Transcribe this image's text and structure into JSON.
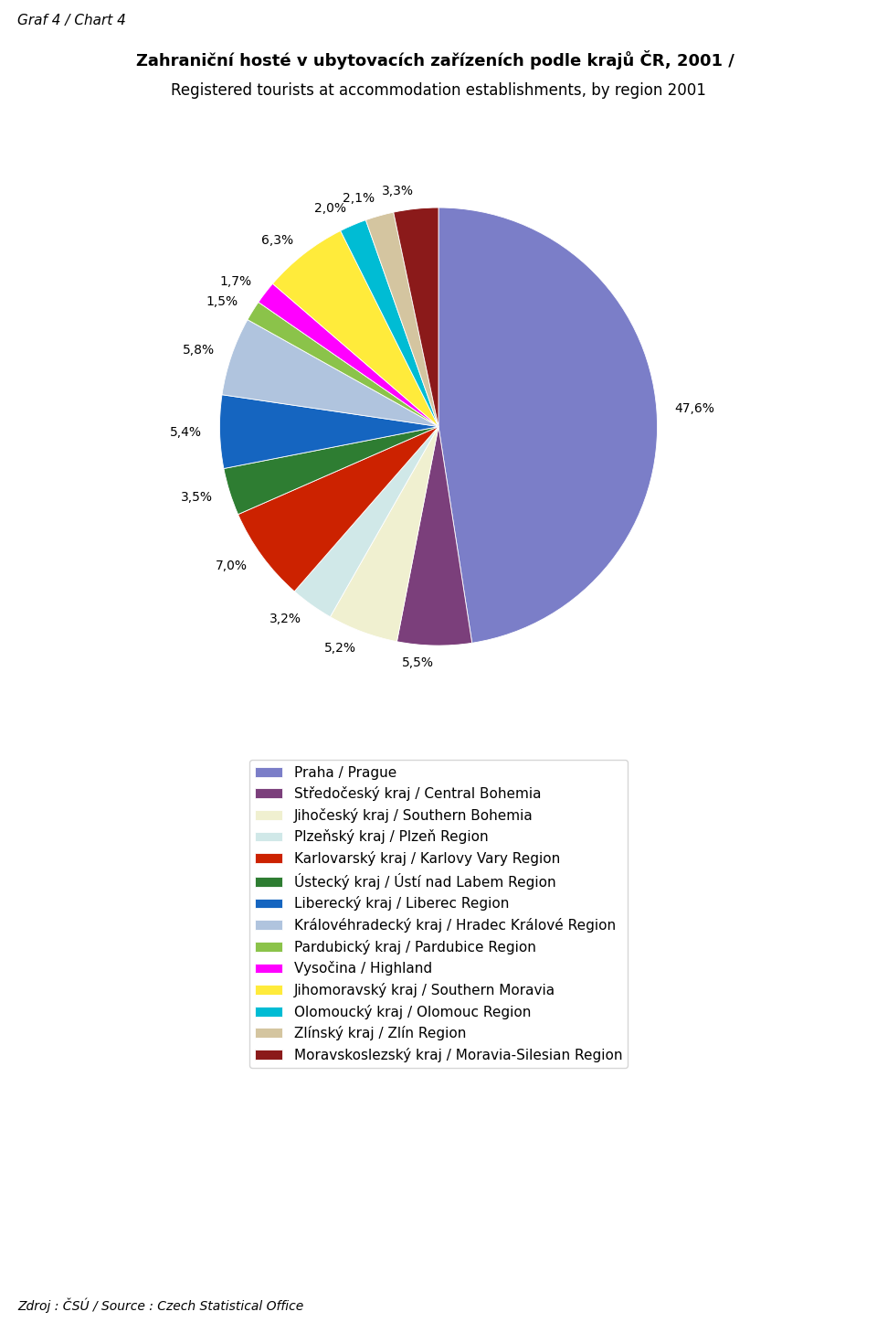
{
  "chart_data": {
    "type": "pie",
    "title": "Zahraniční hosté v ubytovacích zařízeních podle krajů ČR, 2001 / ",
    "subtitle": "Registered tourists at accommodation establishments, by region 2001",
    "annotations": [
      "Graf 4 / Chart 4",
      "Zdroj : ČSÚ / Source : Czech Statistical Office"
    ],
    "categories": [
      "Praha / Prague",
      "Středočeský kraj / Central Bohemia",
      "Jihočeský kraj / Southern Bohemia",
      "Plzeňský kraj / Plzeň Region",
      "Karlovarský kraj / Karlovy Vary Region",
      "Ústecký kraj / Ústí nad Labem Region",
      "Liberecký kraj / Liberec Region",
      "Královéhradecký kraj / Hradec Králové Region",
      "Pardubický kraj / Pardubice Region",
      "Vysočina / Highland",
      "Jihomoravský kraj / Southern Moravia",
      "Olomoucký kraj / Olomouc Region",
      "Zlínský kraj / Zlín Region",
      "Moravskoslezský kraj / Moravia-Silesian Region"
    ],
    "values": [
      47.6,
      5.5,
      5.2,
      3.2,
      7.0,
      3.5,
      5.4,
      5.8,
      1.5,
      1.7,
      6.3,
      2.0,
      2.1,
      3.3
    ],
    "value_labels": [
      "47,6%",
      "5,5%",
      "5,2%",
      "3,2%",
      "7,0%",
      "3,5%",
      "5,4%",
      "5,8%",
      "1,5%",
      "1,7%",
      "6,3%",
      "2,0%",
      "2,1%",
      "3,3%"
    ],
    "colors": [
      "#7B7EC8",
      "#7B3F7B",
      "#F0F0D0",
      "#D0E8E8",
      "#CC2200",
      "#2E7D32",
      "#1565C0",
      "#B0C4DE",
      "#8BC34A",
      "#FF00FF",
      "#FFEB3B",
      "#00BCD4",
      "#D4C5A0",
      "#8B1A1A"
    ],
    "data_labels": true,
    "legend": "upper center"
  }
}
